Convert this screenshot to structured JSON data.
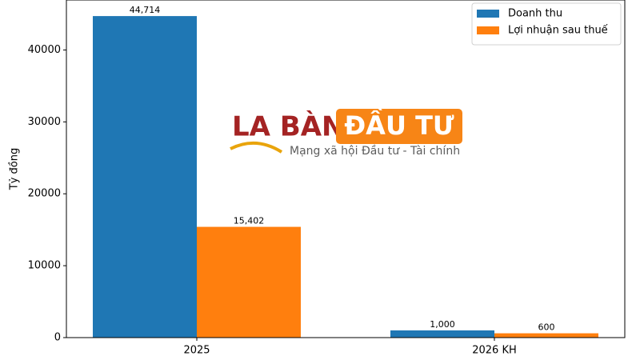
{
  "chart_data": {
    "type": "bar",
    "categories": [
      "2025",
      "2026 KH"
    ],
    "series": [
      {
        "name": "Doanh thu",
        "color": "#1f77b4",
        "values": [
          44714,
          1000
        ],
        "value_labels": [
          "44,714",
          "1,000"
        ]
      },
      {
        "name": "Lợi nhuận sau thuế",
        "color": "#ff7f0e",
        "values": [
          15402,
          600
        ],
        "value_labels": [
          "15,402",
          "600"
        ]
      }
    ],
    "ylabel": "Tỷ đồng",
    "ylim": [
      0,
      46950
    ],
    "yticks": [
      0,
      10000,
      20000,
      30000,
      40000
    ],
    "legend": "upper right",
    "watermark": [
      "LA BÀN",
      "ĐẦU TƯ",
      "Mạng xã hội Đầu tư - Tài chính"
    ]
  }
}
